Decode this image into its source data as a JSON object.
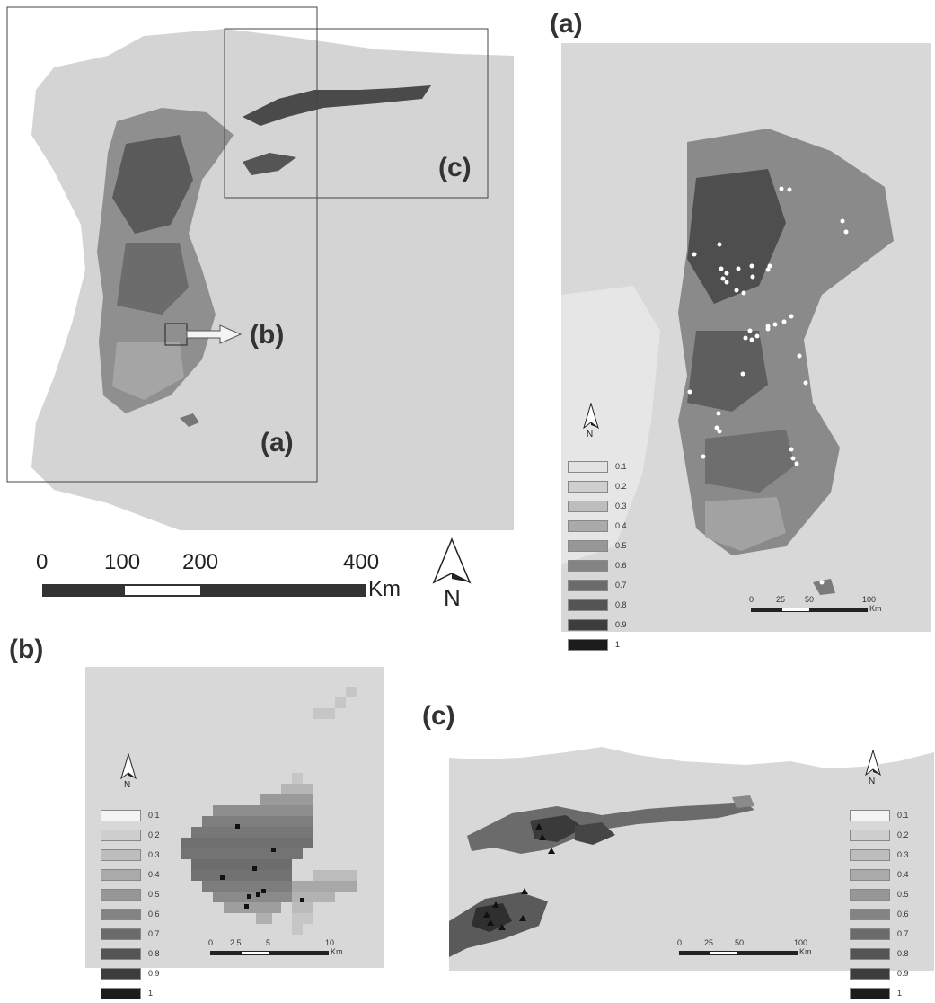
{
  "overview": {
    "box_labels": {
      "a": "(a)",
      "b": "(b)",
      "c": "(c)"
    },
    "scale_ticks": [
      "0",
      "100",
      "200",
      "400"
    ],
    "scale_unit": "Km",
    "north": "N"
  },
  "panel_a": {
    "label": "(a)",
    "north": "N",
    "scale_ticks": [
      "0",
      "25",
      "50",
      "100"
    ],
    "scale_unit": "Km",
    "legend": [
      {
        "label": "0.1",
        "color": "#e2e2e2"
      },
      {
        "label": "0.2",
        "color": "#cfcfcf"
      },
      {
        "label": "0.3",
        "color": "#bdbdbd"
      },
      {
        "label": "0.4",
        "color": "#aaaaaa"
      },
      {
        "label": "0.5",
        "color": "#979797"
      },
      {
        "label": "0.6",
        "color": "#838383"
      },
      {
        "label": "0.7",
        "color": "#6b6b6b"
      },
      {
        "label": "0.8",
        "color": "#545454"
      },
      {
        "label": "0.9",
        "color": "#3d3d3d"
      },
      {
        "label": "1",
        "color": "#1c1c1c"
      }
    ]
  },
  "panel_b": {
    "label": "(b)",
    "north": "N",
    "scale_ticks": [
      "0",
      "2.5",
      "5",
      "10"
    ],
    "scale_unit": "Km",
    "legend": [
      {
        "label": "0.1",
        "color": "#f4f4f4"
      },
      {
        "label": "0.2",
        "color": "#cfcfcf"
      },
      {
        "label": "0.3",
        "color": "#bdbdbd"
      },
      {
        "label": "0.4",
        "color": "#aaaaaa"
      },
      {
        "label": "0.5",
        "color": "#979797"
      },
      {
        "label": "0.6",
        "color": "#838383"
      },
      {
        "label": "0.7",
        "color": "#6b6b6b"
      },
      {
        "label": "0.8",
        "color": "#545454"
      },
      {
        "label": "0.9",
        "color": "#3d3d3d"
      },
      {
        "label": "1",
        "color": "#1c1c1c"
      }
    ]
  },
  "panel_c": {
    "label": "(c)",
    "north": "N",
    "scale_ticks": [
      "0",
      "25",
      "50",
      "100"
    ],
    "scale_unit": "Km",
    "legend": [
      {
        "label": "0.1",
        "color": "#f4f4f4"
      },
      {
        "label": "0.2",
        "color": "#cfcfcf"
      },
      {
        "label": "0.3",
        "color": "#bdbdbd"
      },
      {
        "label": "0.4",
        "color": "#aaaaaa"
      },
      {
        "label": "0.5",
        "color": "#979797"
      },
      {
        "label": "0.6",
        "color": "#838383"
      },
      {
        "label": "0.7",
        "color": "#6b6b6b"
      },
      {
        "label": "0.8",
        "color": "#545454"
      },
      {
        "label": "0.9",
        "color": "#3d3d3d"
      },
      {
        "label": "1",
        "color": "#1c1c1c"
      }
    ]
  }
}
